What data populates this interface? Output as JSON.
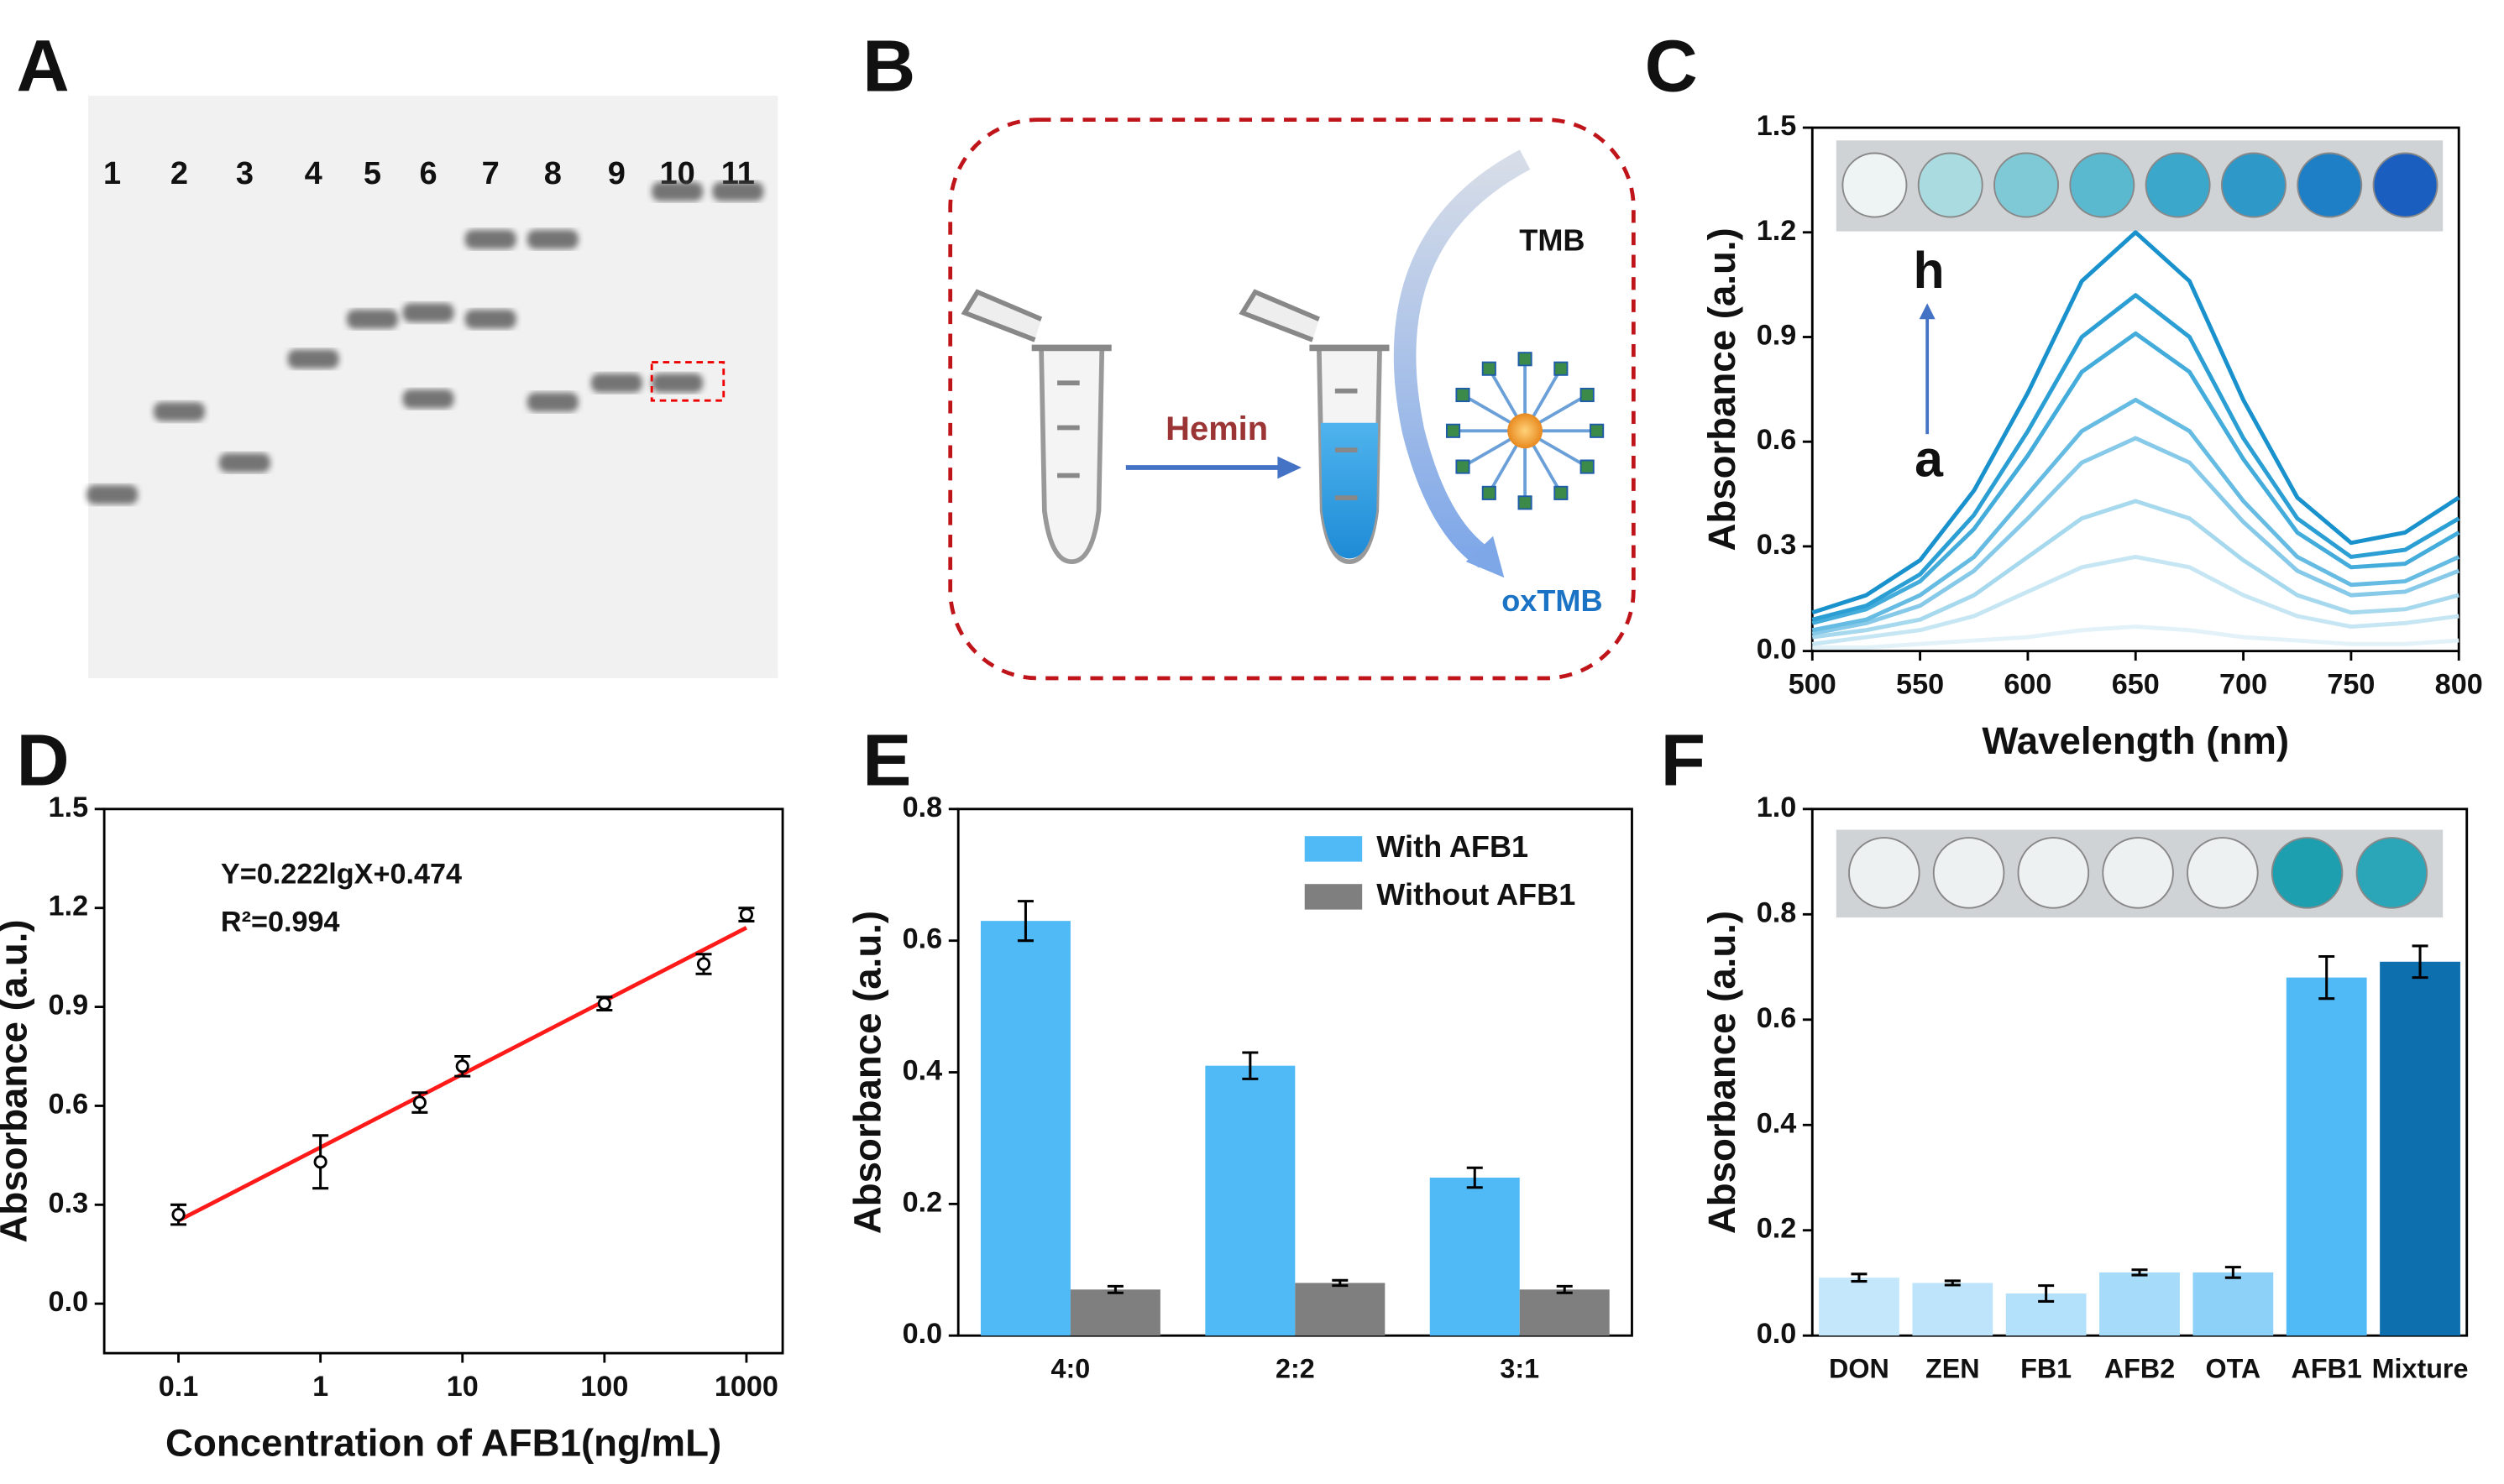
{
  "panel_labels": [
    "A",
    "B",
    "C",
    "D",
    "E",
    "F"
  ],
  "gel": {
    "lane_labels": [
      "1",
      "2",
      "3",
      "4",
      "5",
      "6",
      "7",
      "8",
      "9",
      "10",
      "11"
    ]
  },
  "diagram": {
    "reagent": "Hemin",
    "substrate": "TMB",
    "product": "oxTMB"
  },
  "chart_data": [
    {
      "type": "line",
      "x": [
        500,
        525,
        550,
        575,
        600,
        625,
        650,
        675,
        700,
        725,
        750,
        775,
        800
      ],
      "series": [
        {
          "color": "#e3f2f9",
          "values": [
            0.01,
            0.01,
            0.02,
            0.03,
            0.04,
            0.06,
            0.07,
            0.06,
            0.04,
            0.03,
            0.02,
            0.02,
            0.03
          ]
        },
        {
          "color": "#c6e6f4",
          "values": [
            0.02,
            0.04,
            0.06,
            0.1,
            0.17,
            0.24,
            0.27,
            0.24,
            0.16,
            0.1,
            0.07,
            0.08,
            0.1
          ]
        },
        {
          "color": "#a6d8ee",
          "values": [
            0.04,
            0.06,
            0.09,
            0.16,
            0.27,
            0.38,
            0.43,
            0.38,
            0.26,
            0.16,
            0.11,
            0.12,
            0.16
          ]
        },
        {
          "color": "#86c9e8",
          "values": [
            0.05,
            0.08,
            0.13,
            0.23,
            0.38,
            0.54,
            0.61,
            0.54,
            0.37,
            0.23,
            0.16,
            0.17,
            0.23
          ]
        },
        {
          "color": "#66bbe2",
          "values": [
            0.06,
            0.09,
            0.16,
            0.27,
            0.45,
            0.63,
            0.72,
            0.63,
            0.43,
            0.27,
            0.19,
            0.2,
            0.27
          ]
        },
        {
          "color": "#44acdb",
          "values": [
            0.08,
            0.12,
            0.2,
            0.35,
            0.56,
            0.8,
            0.91,
            0.8,
            0.55,
            0.34,
            0.24,
            0.25,
            0.34
          ]
        },
        {
          "color": "#2b9fd4",
          "values": [
            0.09,
            0.13,
            0.22,
            0.39,
            0.63,
            0.9,
            1.02,
            0.9,
            0.61,
            0.38,
            0.27,
            0.29,
            0.38
          ]
        },
        {
          "color": "#1991cc",
          "values": [
            0.11,
            0.16,
            0.26,
            0.46,
            0.74,
            1.06,
            1.2,
            1.06,
            0.72,
            0.44,
            0.31,
            0.34,
            0.44
          ]
        }
      ],
      "xlim": [
        500,
        800
      ],
      "ylim": [
        0,
        1.5
      ],
      "xticks": [
        500,
        550,
        600,
        650,
        700,
        750,
        800
      ],
      "yticks": [
        {
          "value": 0,
          "label": "0.0"
        },
        0.3,
        0.6,
        0.9,
        1.2,
        1.5
      ],
      "xlabel": "Wavelength (nm)",
      "ylabel": "Absorbance (a.u.)",
      "annotations": [
        "a",
        "h"
      ]
    },
    {
      "type": "scatter",
      "xscale": "log",
      "x": [
        0.1,
        1,
        5,
        10,
        100,
        500,
        1000
      ],
      "values": [
        0.27,
        0.43,
        0.61,
        0.72,
        0.91,
        1.03,
        1.18
      ],
      "errors": [
        0.03,
        0.08,
        0.03,
        0.03,
        0.02,
        0.03,
        0.02
      ],
      "fit": {
        "x": [
          0.1,
          1000
        ],
        "values": [
          0.252,
          1.14
        ],
        "color": "#ff1a1a"
      },
      "xlim": [
        0.03,
        1800
      ],
      "ylim": [
        -0.15,
        1.5
      ],
      "xticks": [
        0.1,
        1,
        10,
        100,
        1000
      ],
      "yticks": [
        {
          "value": 0,
          "label": "0.0"
        },
        0.3,
        0.6,
        0.9,
        1.2,
        1.5
      ],
      "xlabel": "Concentration of AFB1(ng/mL)",
      "ylabel": "Absorbance (a.u.)",
      "annotations": [
        "Y=0.222lgX+0.474",
        "R²=0.994"
      ]
    },
    {
      "type": "bar",
      "categories": [
        "4:0",
        "2:2",
        "3:1"
      ],
      "series": [
        {
          "name": "With AFB1",
          "color": "#4fbaf5",
          "values": [
            0.63,
            0.41,
            0.24
          ],
          "errors": [
            0.03,
            0.02,
            0.015
          ]
        },
        {
          "name": "Without AFB1",
          "color": "#7f7f7f",
          "values": [
            0.07,
            0.08,
            0.07
          ],
          "errors": [
            0.005,
            0.004,
            0.005
          ]
        }
      ],
      "ylim": [
        0,
        0.8
      ],
      "yticks": [
        {
          "value": 0,
          "label": "0.0"
        },
        0.2,
        0.4,
        0.6,
        0.8
      ],
      "ylabel": "Absorbance (a.u.)",
      "legend": "upper right"
    },
    {
      "type": "bar",
      "categories": [
        "DON",
        "ZEN",
        "FB1",
        "AFB2",
        "OTA",
        "AFB1",
        "Mixture"
      ],
      "values": [
        0.11,
        0.1,
        0.08,
        0.12,
        0.12,
        0.68,
        0.71
      ],
      "errors": [
        0.007,
        0.004,
        0.015,
        0.005,
        0.01,
        0.04,
        0.03
      ],
      "colors": [
        "#c4e7fb",
        "#bde4fb",
        "#b3e0fa",
        "#a6dbf9",
        "#8ed1f8",
        "#4fbaf5",
        "#0d6fae"
      ],
      "ylim": [
        0,
        1.0
      ],
      "yticks": [
        {
          "value": 0,
          "label": "0.0"
        },
        0.2,
        0.4,
        0.6,
        0.8,
        {
          "value": 1.0,
          "label": "1.0"
        }
      ],
      "ylabel": "Absorbance (a.u.)"
    }
  ]
}
